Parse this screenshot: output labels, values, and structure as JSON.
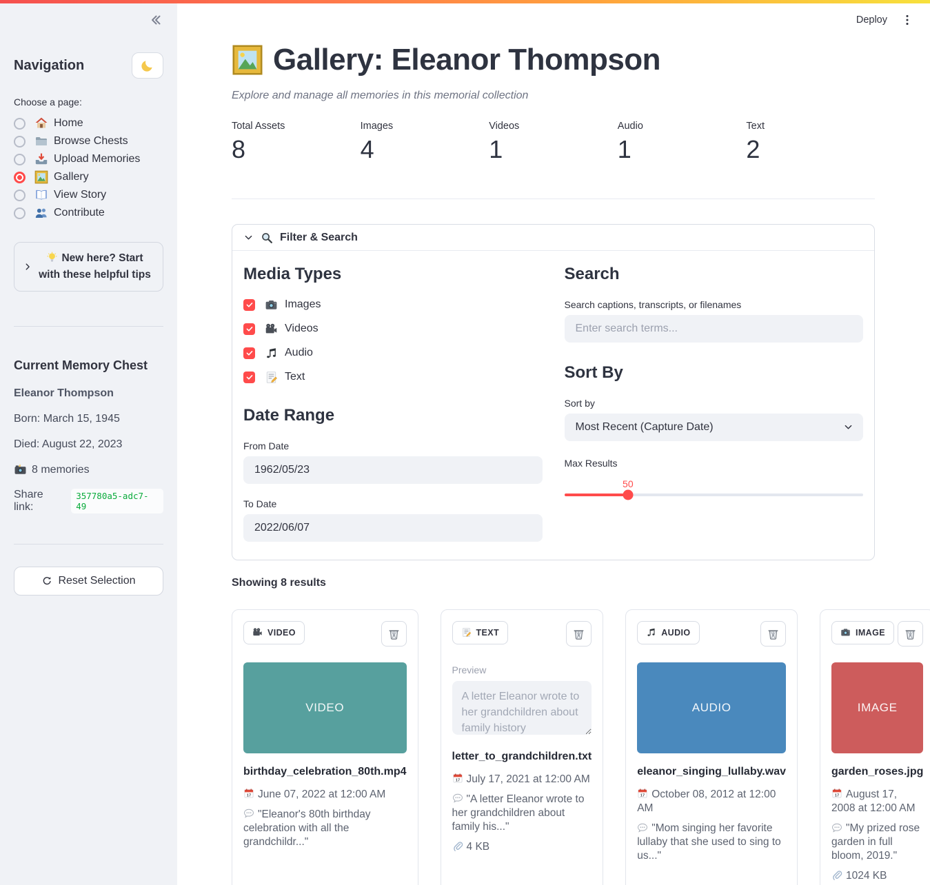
{
  "chrome": {
    "deploy_label": "Deploy",
    "menu_icon": "kebab-icon"
  },
  "sidebar": {
    "collapse_icon": "double-chevron-left-icon",
    "title": "Navigation",
    "theme_icon": "moon-icon",
    "choose_label": "Choose a page:",
    "pages": [
      {
        "label": "Home",
        "icon": "house-icon",
        "selected": false
      },
      {
        "label": "Browse Chests",
        "icon": "folder-icon",
        "selected": false
      },
      {
        "label": "Upload Memories",
        "icon": "inbox-tray-icon",
        "selected": false
      },
      {
        "label": "Gallery",
        "icon": "framed-picture-icon",
        "selected": true
      },
      {
        "label": "View Story",
        "icon": "open-book-icon",
        "selected": false
      },
      {
        "label": "Contribute",
        "icon": "people-icon",
        "selected": false
      }
    ],
    "tips": {
      "chevron_icon": "chevron-right-icon",
      "icon": "bulb-icon",
      "label": "New here? Start with these helpful tips"
    },
    "chest": {
      "heading": "Current Memory Chest",
      "name": "Eleanor Thompson",
      "born": "Born: March 15, 1945",
      "died": "Died: August 22, 2023",
      "memories_icon": "camera-flash-icon",
      "memories": "8 memories",
      "share_label": "Share link:",
      "share_code": "357780a5-adc7-49"
    },
    "reset": {
      "icon": "reset-arrow-icon",
      "label": "Reset Selection"
    }
  },
  "header": {
    "icon": "framed-picture-icon",
    "title": "Gallery: Eleanor Thompson",
    "subtitle": "Explore and manage all memories in this memorial collection"
  },
  "stats": [
    {
      "label": "Total Assets",
      "value": "8"
    },
    {
      "label": "Images",
      "value": "4"
    },
    {
      "label": "Videos",
      "value": "1"
    },
    {
      "label": "Audio",
      "value": "1"
    },
    {
      "label": "Text",
      "value": "2"
    }
  ],
  "filters": {
    "expander": {
      "chevron_icon": "chevron-down-icon",
      "icon": "search-icon",
      "label": "Filter & Search"
    },
    "media_types": {
      "heading": "Media Types",
      "options": [
        {
          "icon": "camera-icon",
          "label": "Images",
          "checked": true
        },
        {
          "icon": "movie-camera-icon",
          "label": "Videos",
          "checked": true
        },
        {
          "icon": "music-note-icon",
          "label": "Audio",
          "checked": true
        },
        {
          "icon": "memo-icon",
          "label": "Text",
          "checked": true
        }
      ]
    },
    "date_range": {
      "heading": "Date Range",
      "from": {
        "label": "From Date",
        "value": "1962/05/23"
      },
      "to": {
        "label": "To Date",
        "value": "2022/06/07"
      }
    },
    "search": {
      "heading": "Search",
      "label": "Search captions, transcripts, or filenames",
      "placeholder": "Enter search terms..."
    },
    "sort": {
      "heading": "Sort By",
      "label": "Sort by",
      "value": "Most Recent (Capture Date)",
      "chevron_icon": "chevron-down-icon"
    },
    "max_results": {
      "label": "Max Results",
      "value": "50",
      "fill_percent": "21.3%"
    }
  },
  "results": {
    "summary": "Showing 8 results",
    "icons": {
      "trash": "wastebasket-icon",
      "date": "calendar-icon",
      "caption": "speech-balloon-icon",
      "size": "paperclip-icon"
    },
    "cards": [
      {
        "badge_icon": "movie-camera-icon",
        "badge": "VIDEO",
        "placeholder": {
          "text": "VIDEO",
          "color": "#57a09e"
        },
        "filename": "birthday_celebration_80th.mp4",
        "date": "June 07, 2022 at 12:00 AM",
        "caption": "\"Eleanor's 80th birthday celebration with all the grandchildr...\""
      },
      {
        "badge_icon": "memo-icon",
        "badge": "TEXT",
        "preview": {
          "label": "Preview",
          "text": "A letter Eleanor wrote to her grandchildren about family history"
        },
        "filename": "letter_to_grandchildren.txt",
        "date": "July 17, 2021 at 12:00 AM",
        "caption": "\"A letter Eleanor wrote to her grandchildren about family his...\"",
        "size": "4 KB"
      },
      {
        "badge_icon": "music-note-icon",
        "badge": "AUDIO",
        "placeholder": {
          "text": "AUDIO",
          "color": "#4a89bd"
        },
        "filename": "eleanor_singing_lullaby.wav",
        "date": "October 08, 2012 at 12:00 AM",
        "caption": "\"Mom singing her favorite lullaby that she used to sing to us...\""
      },
      {
        "badge_icon": "camera-icon",
        "badge": "IMAGE",
        "placeholder": {
          "text": "IMAGE",
          "color": "#cd5c5c"
        },
        "filename": "garden_roses.jpg",
        "date": "August 17, 2008 at 12:00 AM",
        "caption": "\"My prized rose garden in full bloom, 2019.\"",
        "size": "1024 KB"
      }
    ]
  }
}
